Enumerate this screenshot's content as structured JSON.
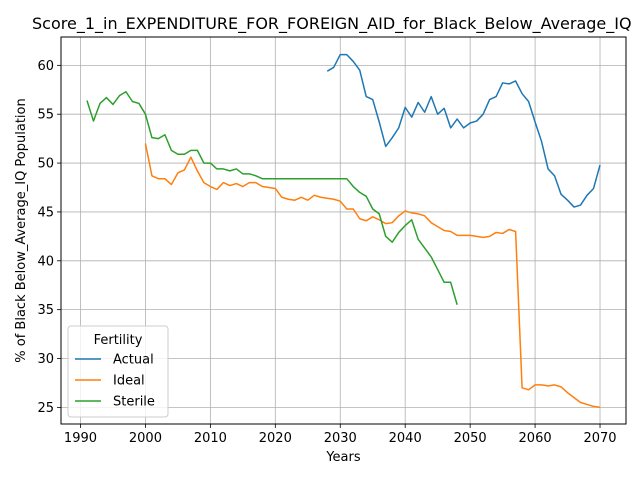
{
  "chart_data": {
    "type": "line",
    "title": "Score_1_in_EXPENDITURE_FOR_FOREIGN_AID_for_Black_Below_Average_IQ",
    "xlabel": "Years",
    "ylabel": "% of Black Below_Average_IQ Population",
    "xlim": [
      1987,
      2074
    ],
    "ylim": [
      23.3,
      62.9
    ],
    "xticks": [
      1990,
      2000,
      2010,
      2020,
      2030,
      2040,
      2050,
      2060,
      2070
    ],
    "yticks": [
      25,
      30,
      35,
      40,
      45,
      50,
      55,
      60
    ],
    "grid": true,
    "legend": {
      "title": "Fertility",
      "position": "lower-left"
    },
    "series": [
      {
        "name": "Actual",
        "color": "#1f77b4",
        "x": [
          2028,
          2029,
          2030,
          2031,
          2032,
          2033,
          2034,
          2035,
          2036,
          2037,
          2038,
          2039,
          2040,
          2041,
          2042,
          2043,
          2044,
          2045,
          2046,
          2047,
          2048,
          2049,
          2050,
          2051,
          2052,
          2053,
          2054,
          2055,
          2056,
          2057,
          2058,
          2059,
          2060,
          2061,
          2062,
          2063,
          2064,
          2065,
          2066,
          2067,
          2068,
          2069,
          2070
        ],
        "y": [
          59.4,
          59.8,
          61.1,
          61.1,
          60.4,
          59.5,
          56.8,
          56.5,
          54.2,
          51.7,
          52.6,
          53.6,
          55.7,
          54.7,
          56.2,
          55.2,
          56.8,
          55.0,
          55.6,
          53.6,
          54.5,
          53.6,
          54.1,
          54.3,
          55.0,
          56.5,
          56.8,
          58.2,
          58.1,
          58.4,
          57.1,
          56.3,
          54.2,
          52.2,
          49.4,
          48.7,
          46.8,
          46.2,
          45.5,
          45.7,
          46.7,
          47.4,
          49.8
        ]
      },
      {
        "name": "Ideal",
        "color": "#ff7f0e",
        "x": [
          2000,
          2001,
          2002,
          2003,
          2004,
          2005,
          2006,
          2007,
          2008,
          2009,
          2010,
          2011,
          2012,
          2013,
          2014,
          2015,
          2016,
          2017,
          2018,
          2019,
          2020,
          2021,
          2022,
          2023,
          2024,
          2025,
          2026,
          2027,
          2028,
          2029,
          2030,
          2031,
          2032,
          2033,
          2034,
          2035,
          2036,
          2037,
          2038,
          2039,
          2040,
          2041,
          2042,
          2043,
          2044,
          2045,
          2046,
          2047,
          2048,
          2049,
          2050,
          2051,
          2052,
          2053,
          2054,
          2055,
          2056,
          2057,
          2058,
          2059,
          2060,
          2061,
          2062,
          2063,
          2064,
          2065,
          2066,
          2067,
          2068,
          2069,
          2070
        ],
        "y": [
          52.0,
          48.7,
          48.4,
          48.4,
          47.8,
          49.0,
          49.3,
          50.6,
          49.2,
          48.0,
          47.6,
          47.3,
          48.0,
          47.7,
          47.9,
          47.6,
          48.0,
          48.0,
          47.6,
          47.5,
          47.4,
          46.5,
          46.3,
          46.2,
          46.5,
          46.2,
          46.7,
          46.5,
          46.4,
          46.3,
          46.1,
          45.3,
          45.3,
          44.3,
          44.1,
          44.5,
          44.2,
          43.8,
          43.9,
          44.6,
          45.1,
          44.9,
          44.8,
          44.6,
          43.9,
          43.5,
          43.1,
          43.0,
          42.6,
          42.6,
          42.6,
          42.5,
          42.4,
          42.5,
          42.9,
          42.8,
          43.2,
          43.0,
          27.0,
          26.8,
          27.3,
          27.3,
          27.2,
          27.3,
          27.1,
          26.5,
          26.0,
          25.5,
          25.3,
          25.1,
          25.0
        ]
      },
      {
        "name": "Sterile",
        "color": "#2ca02c",
        "x": [
          1991,
          1992,
          1993,
          1994,
          1995,
          1996,
          1997,
          1998,
          1999,
          2000,
          2001,
          2002,
          2003,
          2004,
          2005,
          2006,
          2007,
          2008,
          2009,
          2010,
          2011,
          2012,
          2013,
          2014,
          2015,
          2016,
          2017,
          2018,
          2019,
          2020,
          2021,
          2022,
          2023,
          2024,
          2025,
          2026,
          2027,
          2028,
          2029,
          2030,
          2031,
          2032,
          2033,
          2034,
          2035,
          2036,
          2037,
          2038,
          2039,
          2040,
          2041,
          2042,
          2043,
          2044,
          2045,
          2046,
          2047,
          2048
        ],
        "y": [
          56.4,
          54.3,
          56.1,
          56.7,
          56.0,
          56.9,
          57.3,
          56.3,
          56.1,
          55.0,
          52.6,
          52.5,
          52.9,
          51.3,
          50.9,
          50.9,
          51.3,
          51.3,
          50.0,
          50.0,
          49.4,
          49.4,
          49.2,
          49.4,
          48.9,
          48.9,
          48.7,
          48.4,
          48.4,
          48.4,
          48.4,
          48.4,
          48.4,
          48.4,
          48.4,
          48.4,
          48.4,
          48.4,
          48.4,
          48.4,
          48.4,
          47.6,
          47.0,
          46.6,
          45.3,
          44.8,
          42.5,
          41.9,
          42.9,
          43.6,
          44.2,
          42.2,
          41.3,
          40.4,
          39.1,
          37.8,
          37.8,
          35.5
        ]
      }
    ]
  }
}
